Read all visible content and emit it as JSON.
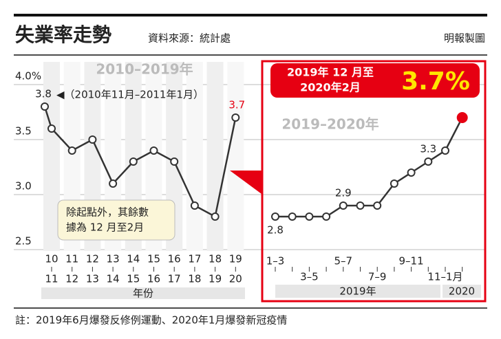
{
  "header": {
    "title": "失業率走勢",
    "source": "資料來源：統計處",
    "credit": "明報製圖"
  },
  "footnote": "註：2019年6月爆發反修例運動、2020年1月爆發新冠疫情",
  "chart_data": [
    {
      "type": "line",
      "subtitle": "2010–2019年",
      "x_label": "年份",
      "categories": [
        null,
        [
          "10",
          "11"
        ],
        [
          "11",
          "12"
        ],
        [
          "12",
          "13"
        ],
        [
          "13",
          "14"
        ],
        [
          "14",
          "15"
        ],
        [
          "15",
          "16"
        ],
        [
          "16",
          "17"
        ],
        [
          "17",
          "18"
        ],
        [
          "18",
          "19"
        ],
        [
          "19",
          "20"
        ]
      ],
      "values": [
        3.8,
        3.6,
        3.4,
        3.5,
        3.1,
        3.3,
        3.4,
        3.3,
        2.9,
        2.8,
        3.7
      ],
      "value_labels": [
        "3.8",
        null,
        null,
        null,
        null,
        null,
        null,
        null,
        null,
        null,
        "3.7"
      ],
      "annotation_first": "◀（2010年11月–2011年1月）",
      "note": [
        "除起點外，其餘數",
        "據為 12 月至2月"
      ],
      "ylim": [
        2.5,
        4.0
      ],
      "yticks": [
        2.5,
        {
          "value": 3,
          "label": "3.0"
        },
        3.5,
        {
          "value": 4,
          "label": "4.0%"
        }
      ],
      "grid": true,
      "color": "#333333",
      "highlight_color": "#e60012"
    },
    {
      "type": "line",
      "subtitle": "2019–2020年",
      "categories": [
        "1–3",
        null,
        "3–5",
        null,
        "5–7",
        null,
        "7–9",
        null,
        "9–11",
        null,
        "11–1月",
        null
      ],
      "years": [
        "2019年",
        "2020"
      ],
      "values": [
        2.8,
        2.8,
        2.8,
        2.8,
        2.9,
        2.9,
        2.9,
        3.1,
        3.2,
        3.3,
        3.4,
        3.7
      ],
      "value_labels": [
        "2.8",
        null,
        null,
        null,
        "2.9",
        null,
        null,
        null,
        null,
        "3.3",
        null,
        null
      ],
      "callout": [
        "2019年 12 月至",
        "2020年2月"
      ],
      "callout_value": "3.7%",
      "ylim": [
        2.5,
        4.0
      ],
      "color": "#333333",
      "highlight_color": "#e60012"
    }
  ]
}
